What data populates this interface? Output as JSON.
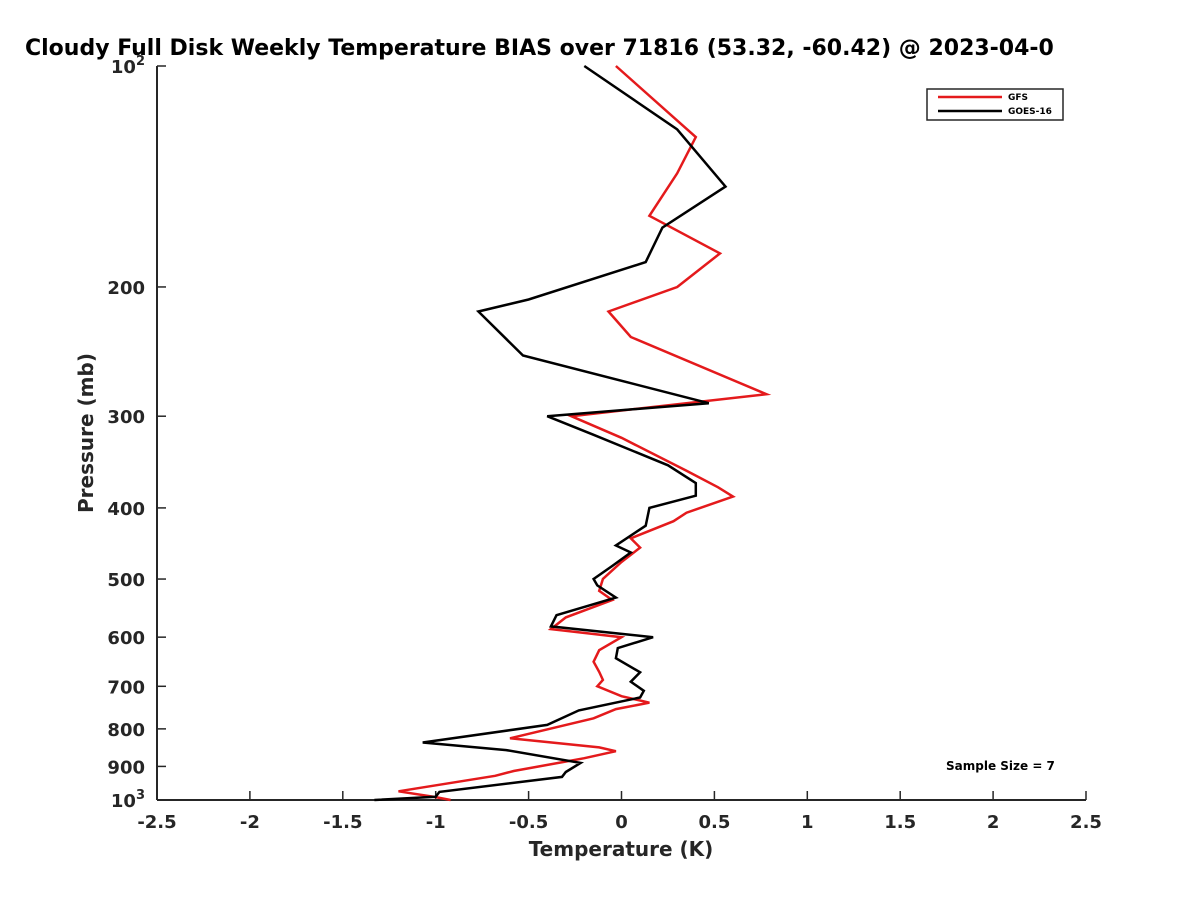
{
  "chart_data": {
    "type": "line",
    "title": "Cloudy Full Disk Weekly Temperature BIAS over 71816 (53.32, -60.42) @ 2023-04-0",
    "xlabel": "Temperature (K)",
    "ylabel": "Pressure (mb)",
    "xlim": [
      -2.5,
      2.5
    ],
    "ylim": [
      100,
      1000
    ],
    "y_scale": "log",
    "y_reversed": true,
    "x_ticks": [
      "-2.5",
      "-2",
      "-1.5",
      "-1",
      "-0.5",
      "0",
      "0.5",
      "1",
      "1.5",
      "2",
      "2.5"
    ],
    "x_tick_values": [
      -2.5,
      -2,
      -1.5,
      -1,
      -0.5,
      0,
      0.5,
      1,
      1.5,
      2,
      2.5
    ],
    "y_ticks": [
      {
        "value": 100,
        "label": "10",
        "sup": "2"
      },
      {
        "value": 200,
        "label": "200",
        "sup": ""
      },
      {
        "value": 300,
        "label": "300",
        "sup": ""
      },
      {
        "value": 400,
        "label": "400",
        "sup": ""
      },
      {
        "value": 500,
        "label": "500",
        "sup": ""
      },
      {
        "value": 600,
        "label": "600",
        "sup": ""
      },
      {
        "value": 700,
        "label": "700",
        "sup": ""
      },
      {
        "value": 800,
        "label": "800",
        "sup": ""
      },
      {
        "value": 900,
        "label": "900",
        "sup": ""
      },
      {
        "value": 1000,
        "label": "10",
        "sup": "3"
      }
    ],
    "grid": false,
    "legend_position": "top-right",
    "annotation": "Sample Size = 7",
    "series": [
      {
        "name": "GFS",
        "color": "#e41a1c",
        "points": [
          [
            -0.03,
            100
          ],
          [
            0.4,
            125
          ],
          [
            0.3,
            140
          ],
          [
            0.15,
            160
          ],
          [
            0.53,
            180
          ],
          [
            0.3,
            200
          ],
          [
            -0.07,
            216
          ],
          [
            0.05,
            234
          ],
          [
            0.78,
            280
          ],
          [
            -0.27,
            300
          ],
          [
            0.0,
            321
          ],
          [
            0.35,
            356
          ],
          [
            0.52,
            375
          ],
          [
            0.6,
            386
          ],
          [
            0.35,
            406
          ],
          [
            0.28,
            417
          ],
          [
            0.05,
            440
          ],
          [
            0.1,
            453
          ],
          [
            0.0,
            474
          ],
          [
            -0.1,
            500
          ],
          [
            -0.12,
            519
          ],
          [
            -0.05,
            534
          ],
          [
            -0.3,
            564
          ],
          [
            -0.38,
            585
          ],
          [
            0.0,
            600
          ],
          [
            -0.12,
            625
          ],
          [
            -0.15,
            648
          ],
          [
            -0.12,
            669
          ],
          [
            -0.1,
            686
          ],
          [
            -0.13,
            700
          ],
          [
            0.0,
            722
          ],
          [
            0.15,
            737
          ],
          [
            -0.03,
            752
          ],
          [
            -0.15,
            774
          ],
          [
            -0.6,
            824
          ],
          [
            -0.12,
            848
          ],
          [
            -0.03,
            858
          ],
          [
            -0.2,
            877
          ],
          [
            -0.58,
            913
          ],
          [
            -0.68,
            927
          ],
          [
            -1.2,
            973
          ],
          [
            -1.0,
            991
          ],
          [
            -0.92,
            1000
          ]
        ]
      },
      {
        "name": "GOES-16",
        "color": "#000000",
        "points": [
          [
            -0.2,
            100
          ],
          [
            0.3,
            122
          ],
          [
            0.56,
            146
          ],
          [
            0.22,
            166
          ],
          [
            0.13,
            185
          ],
          [
            -0.5,
            208
          ],
          [
            -0.77,
            216
          ],
          [
            -0.53,
            248
          ],
          [
            0.47,
            288
          ],
          [
            -0.4,
            300
          ],
          [
            -0.15,
            318
          ],
          [
            0.25,
            350
          ],
          [
            0.4,
            370
          ],
          [
            0.4,
            385
          ],
          [
            0.15,
            400
          ],
          [
            0.13,
            423
          ],
          [
            -0.03,
            450
          ],
          [
            0.05,
            460
          ],
          [
            -0.05,
            480
          ],
          [
            -0.15,
            500
          ],
          [
            -0.13,
            510
          ],
          [
            -0.03,
            530
          ],
          [
            -0.35,
            560
          ],
          [
            -0.38,
            580
          ],
          [
            0.17,
            600
          ],
          [
            -0.02,
            621
          ],
          [
            -0.03,
            641
          ],
          [
            0.1,
            670
          ],
          [
            0.05,
            690
          ],
          [
            0.12,
            710
          ],
          [
            0.1,
            725
          ],
          [
            -0.23,
            755
          ],
          [
            -0.4,
            790
          ],
          [
            -1.07,
            835
          ],
          [
            -0.62,
            855
          ],
          [
            -0.22,
            890
          ],
          [
            -0.3,
            916
          ],
          [
            -0.32,
            930
          ],
          [
            -0.98,
            975
          ],
          [
            -1.0,
            990
          ],
          [
            -1.33,
            1000
          ]
        ]
      }
    ]
  }
}
